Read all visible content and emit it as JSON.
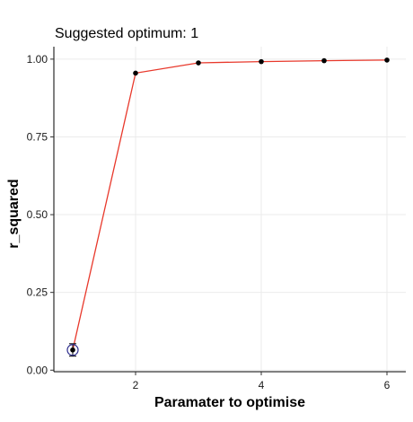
{
  "chart_data": {
    "type": "line",
    "title": "Suggested optimum: 1",
    "xlabel": "Paramater to optimise",
    "ylabel": "r_squared",
    "x": [
      1,
      2,
      3,
      4,
      5,
      6
    ],
    "y": [
      0.065,
      0.955,
      0.988,
      0.992,
      0.995,
      0.997
    ],
    "errorbar": {
      "x": 1,
      "low": 0.045,
      "high": 0.085
    },
    "highlight": {
      "x": 1,
      "y": 0.065
    },
    "xlim": [
      0.7,
      6.3
    ],
    "ylim": [
      -0.005,
      1.04
    ],
    "xticks": [
      2,
      4,
      6
    ],
    "xtick_labels": [
      "2",
      "4",
      "6"
    ],
    "yticks": [
      0,
      0.25,
      0.5,
      0.75,
      1.0
    ],
    "ytick_labels": [
      "0.00",
      "0.25",
      "0.50",
      "0.75",
      "1.00"
    ],
    "grid": true,
    "colors": {
      "line": "#e8382b",
      "point": "#000000",
      "highlight": "#2b2b8c",
      "grid": "#ebebeb"
    }
  }
}
